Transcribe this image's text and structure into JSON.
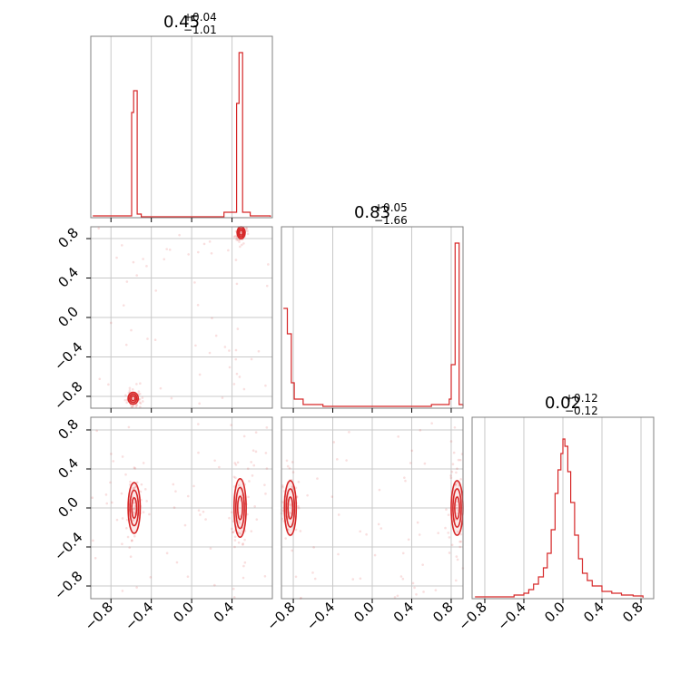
{
  "chart_data": {
    "type": "corner",
    "accent_color": "#d62728",
    "grid": true,
    "titles": [
      {
        "value": "0.45",
        "plus": "+0.04",
        "minus": "−1.01"
      },
      {
        "value": "0.83",
        "plus": "+0.05",
        "minus": "−1.66"
      },
      {
        "value": "0.02",
        "plus": "+0.12",
        "minus": "−0.12"
      }
    ],
    "axis_ranges": [
      [
        -1.0,
        0.8
      ],
      [
        -0.92,
        0.92
      ],
      [
        -0.93,
        0.93
      ]
    ],
    "ticks": {
      "p0": [
        -0.8,
        -0.4,
        0.0,
        0.4
      ],
      "p1": [
        -0.8,
        -0.4,
        0.0,
        0.4,
        0.8
      ],
      "p2": [
        -0.8,
        -0.4,
        0.0,
        0.4,
        0.8
      ]
    },
    "tick_labels": {
      "p0": [
        "−0.8",
        "−0.4",
        "0.0",
        "0.4"
      ],
      "p1": [
        "−0.8",
        "−0.4",
        "0.0",
        "0.4",
        "0.8"
      ],
      "p2": [
        "−0.8",
        "−0.4",
        "0.0",
        "0.4",
        "0.8"
      ]
    },
    "histograms": [
      {
        "parameter": 0,
        "points": [
          [
            -0.98,
            0.01
          ],
          [
            -0.6,
            0.01
          ],
          [
            -0.595,
            0.58
          ],
          [
            -0.575,
            0.7
          ],
          [
            -0.555,
            0.7
          ],
          [
            -0.54,
            0.02
          ],
          [
            -0.5,
            0.005
          ],
          [
            -0.3,
            0.005
          ],
          [
            0.3,
            0.005
          ],
          [
            0.32,
            0.03
          ],
          [
            0.43,
            0.03
          ],
          [
            0.445,
            0.63
          ],
          [
            0.47,
            0.91
          ],
          [
            0.49,
            0.91
          ],
          [
            0.505,
            0.03
          ],
          [
            0.58,
            0.01
          ],
          [
            0.78,
            0.005
          ]
        ]
      },
      {
        "parameter": 1,
        "points": [
          [
            -0.9,
            0.55
          ],
          [
            -0.87,
            0.55
          ],
          [
            -0.86,
            0.41
          ],
          [
            -0.83,
            0.41
          ],
          [
            -0.82,
            0.14
          ],
          [
            -0.79,
            0.05
          ],
          [
            -0.7,
            0.02
          ],
          [
            -0.5,
            0.01
          ],
          [
            0.3,
            0.01
          ],
          [
            0.6,
            0.02
          ],
          [
            0.78,
            0.05
          ],
          [
            0.8,
            0.24
          ],
          [
            0.83,
            0.24
          ],
          [
            0.84,
            0.91
          ],
          [
            0.87,
            0.91
          ],
          [
            0.88,
            0.02
          ],
          [
            0.92,
            0.01
          ]
        ]
      },
      {
        "parameter": 2,
        "points": [
          [
            -0.9,
            0.01
          ],
          [
            -0.5,
            0.02
          ],
          [
            -0.4,
            0.03
          ],
          [
            -0.35,
            0.05
          ],
          [
            -0.3,
            0.08
          ],
          [
            -0.25,
            0.12
          ],
          [
            -0.2,
            0.17
          ],
          [
            -0.16,
            0.25
          ],
          [
            -0.12,
            0.38
          ],
          [
            -0.08,
            0.58
          ],
          [
            -0.05,
            0.71
          ],
          [
            -0.02,
            0.8
          ],
          [
            0.0,
            0.88
          ],
          [
            0.02,
            0.84
          ],
          [
            0.05,
            0.7
          ],
          [
            0.08,
            0.53
          ],
          [
            0.12,
            0.35
          ],
          [
            0.16,
            0.22
          ],
          [
            0.2,
            0.14
          ],
          [
            0.25,
            0.1
          ],
          [
            0.3,
            0.07
          ],
          [
            0.4,
            0.04
          ],
          [
            0.5,
            0.03
          ],
          [
            0.6,
            0.02
          ],
          [
            0.72,
            0.015
          ],
          [
            0.82,
            0.005
          ]
        ]
      }
    ],
    "scatter_2d": [
      {
        "x_param": 0,
        "y_param": 1,
        "modes": [
          {
            "center": [
              0.49,
              0.86
            ],
            "std": [
              0.02,
              0.03
            ]
          },
          {
            "center": [
              -0.58,
              -0.82
            ],
            "std": [
              0.025,
              0.03
            ]
          }
        ]
      },
      {
        "x_param": 0,
        "y_param": 2,
        "modes": [
          {
            "center": [
              -0.57,
              0.0
            ],
            "std": [
              0.03,
              0.13
            ]
          },
          {
            "center": [
              0.48,
              0.0
            ],
            "std": [
              0.03,
              0.15
            ]
          }
        ]
      },
      {
        "x_param": 1,
        "y_param": 2,
        "modes": [
          {
            "center": [
              -0.83,
              0.0
            ],
            "std": [
              0.03,
              0.14
            ]
          },
          {
            "center": [
              0.86,
              0.0
            ],
            "std": [
              0.03,
              0.14
            ]
          }
        ]
      }
    ]
  }
}
